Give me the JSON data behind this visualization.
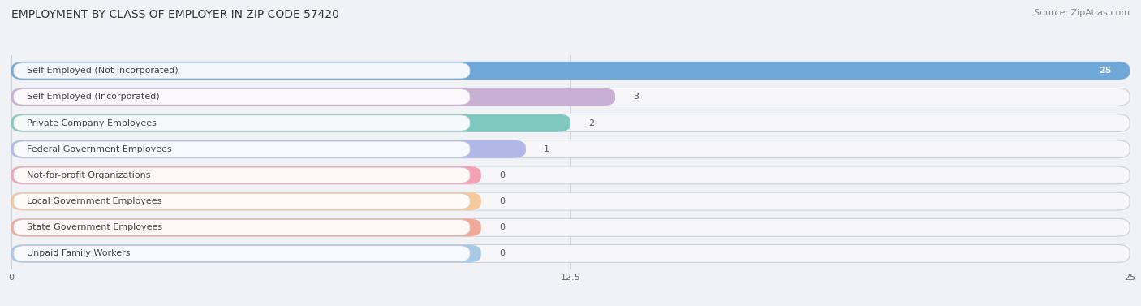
{
  "title": "EMPLOYMENT BY CLASS OF EMPLOYER IN ZIP CODE 57420",
  "source": "Source: ZipAtlas.com",
  "categories": [
    "Self-Employed (Not Incorporated)",
    "Self-Employed (Incorporated)",
    "Private Company Employees",
    "Federal Government Employees",
    "Not-for-profit Organizations",
    "Local Government Employees",
    "State Government Employees",
    "Unpaid Family Workers"
  ],
  "values": [
    25,
    3,
    2,
    1,
    0,
    0,
    0,
    0
  ],
  "bar_colors": [
    "#6ea8d8",
    "#c8afd4",
    "#7ec8c0",
    "#b0b8e8",
    "#f4a0b5",
    "#f7c899",
    "#f0a898",
    "#a8c8e8"
  ],
  "xlim": [
    0,
    25
  ],
  "xticks": [
    0,
    12.5,
    25
  ],
  "figsize": [
    14.06,
    3.77
  ],
  "dpi": 100,
  "title_fontsize": 10,
  "label_fontsize": 8,
  "value_fontsize": 8,
  "source_fontsize": 8,
  "background_color": "#f0f2f5",
  "bar_bg_color": "#ffffff",
  "bar_row_bg": "#ebebef"
}
